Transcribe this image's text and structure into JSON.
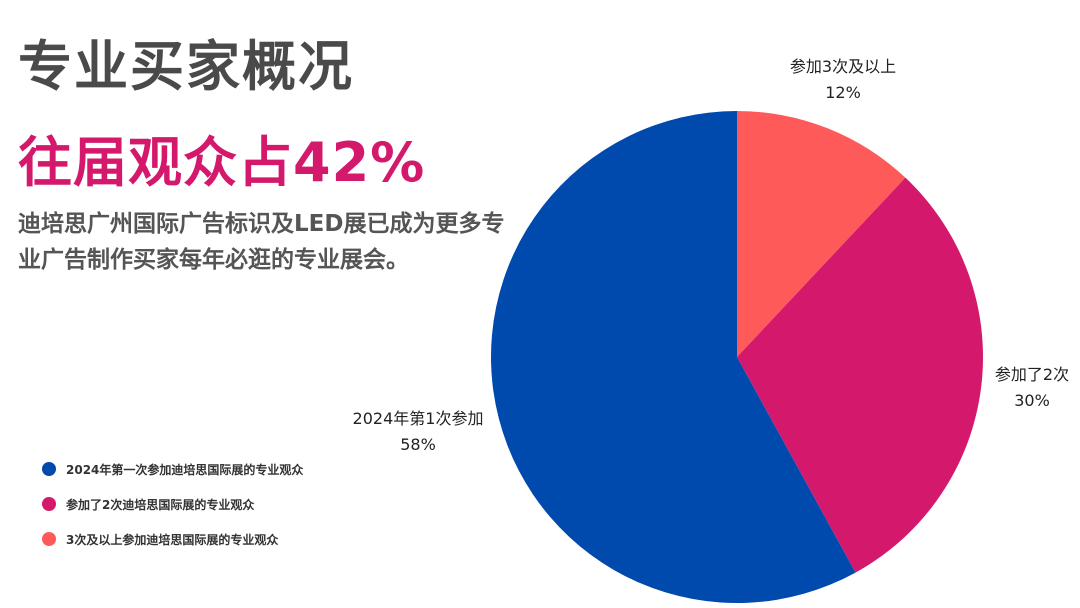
{
  "header": {
    "title": "专业买家概况",
    "highlight": "往届观众占42%",
    "description": "迪培思广州国际广告标识及LED展已成为更多专业广告制作买家每年必逛的专业展会。"
  },
  "chart_data": {
    "type": "pie",
    "title": "",
    "slices": [
      {
        "name": "参加3次及以上",
        "value": 12,
        "value_label": "12%",
        "color": "#ff5a5a"
      },
      {
        "name": "参加了2次",
        "value": 30,
        "value_label": "30%",
        "color": "#d4186c"
      },
      {
        "name": "2024年第1次参加",
        "value": 58,
        "value_label": "58%",
        "color": "#004aad"
      }
    ],
    "legend": {
      "placement": "bottom-left",
      "entries": [
        {
          "label": "2024年第一次参加迪培思国际展的专业观众",
          "color": "#004aad"
        },
        {
          "label": "参加了2次迪培思国际展的专业观众",
          "color": "#d4186c"
        },
        {
          "label": "3次及以上参加迪培思国际展的专业观众",
          "color": "#ff5a5a"
        }
      ]
    }
  }
}
